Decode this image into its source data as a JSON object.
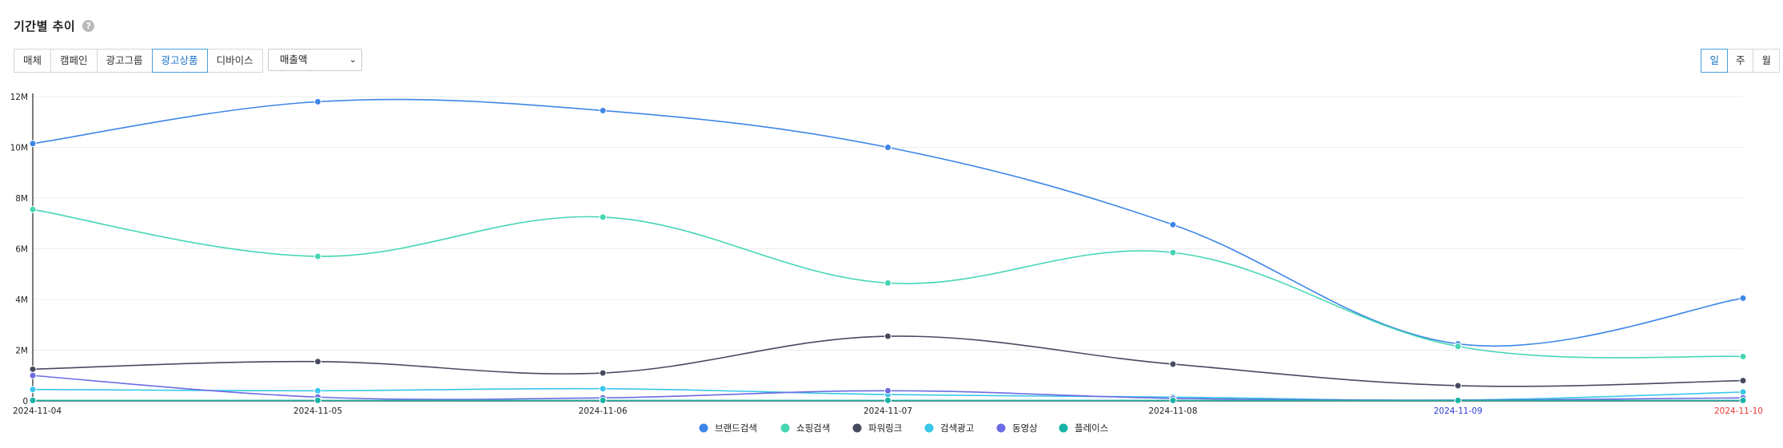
{
  "header": {
    "title": "기간별 추이",
    "help_icon": "question-icon",
    "help_glyph": "?"
  },
  "group_tabs": [
    {
      "label": "매체",
      "active": false
    },
    {
      "label": "캠페인",
      "active": false
    },
    {
      "label": "광고그룹",
      "active": false
    },
    {
      "label": "광고상품",
      "active": true
    },
    {
      "label": "디바이스",
      "active": false
    }
  ],
  "metric_select": {
    "value": "매출액",
    "icon": "chevron-down-icon"
  },
  "period_tabs": [
    {
      "label": "일",
      "active": true
    },
    {
      "label": "주",
      "active": false
    },
    {
      "label": "월",
      "active": false
    }
  ],
  "chart_data": {
    "type": "line",
    "smooth": true,
    "x": [
      "2024-11-04",
      "2024-11-05",
      "2024-11-06",
      "2024-11-07",
      "2024-11-08",
      "2024-11-09",
      "2024-11-10"
    ],
    "x_label_colors": [
      "#222222",
      "#222222",
      "#222222",
      "#222222",
      "#222222",
      "#2b3bd6",
      "#e53935"
    ],
    "y_ticks": [
      "0",
      "2M",
      "4M",
      "6M",
      "8M",
      "10M",
      "12M"
    ],
    "ylim": [
      0,
      12000000
    ],
    "grid": true,
    "legend_position": "bottom-center",
    "series": [
      {
        "name": "브랜드검색",
        "color": "#3d86e8",
        "values": [
          10150000,
          11800000,
          11450000,
          10000000,
          6950000,
          2250000,
          4050000
        ]
      },
      {
        "name": "쇼핑검색",
        "color": "#45d6b4",
        "values": [
          7550000,
          5700000,
          7250000,
          4650000,
          5850000,
          2150000,
          1750000
        ]
      },
      {
        "name": "파워링크",
        "color": "#474a5e",
        "values": [
          1250000,
          1550000,
          1100000,
          2550000,
          1450000,
          600000,
          800000
        ]
      },
      {
        "name": "검색광고",
        "color": "#39c7ea",
        "values": [
          450000,
          400000,
          480000,
          250000,
          150000,
          30000,
          350000
        ]
      },
      {
        "name": "동영상",
        "color": "#6d6be3",
        "values": [
          1000000,
          150000,
          120000,
          400000,
          100000,
          30000,
          120000
        ]
      },
      {
        "name": "플레이스",
        "color": "#17b3a5",
        "values": [
          20000,
          20000,
          20000,
          20000,
          20000,
          20000,
          20000
        ]
      }
    ]
  }
}
